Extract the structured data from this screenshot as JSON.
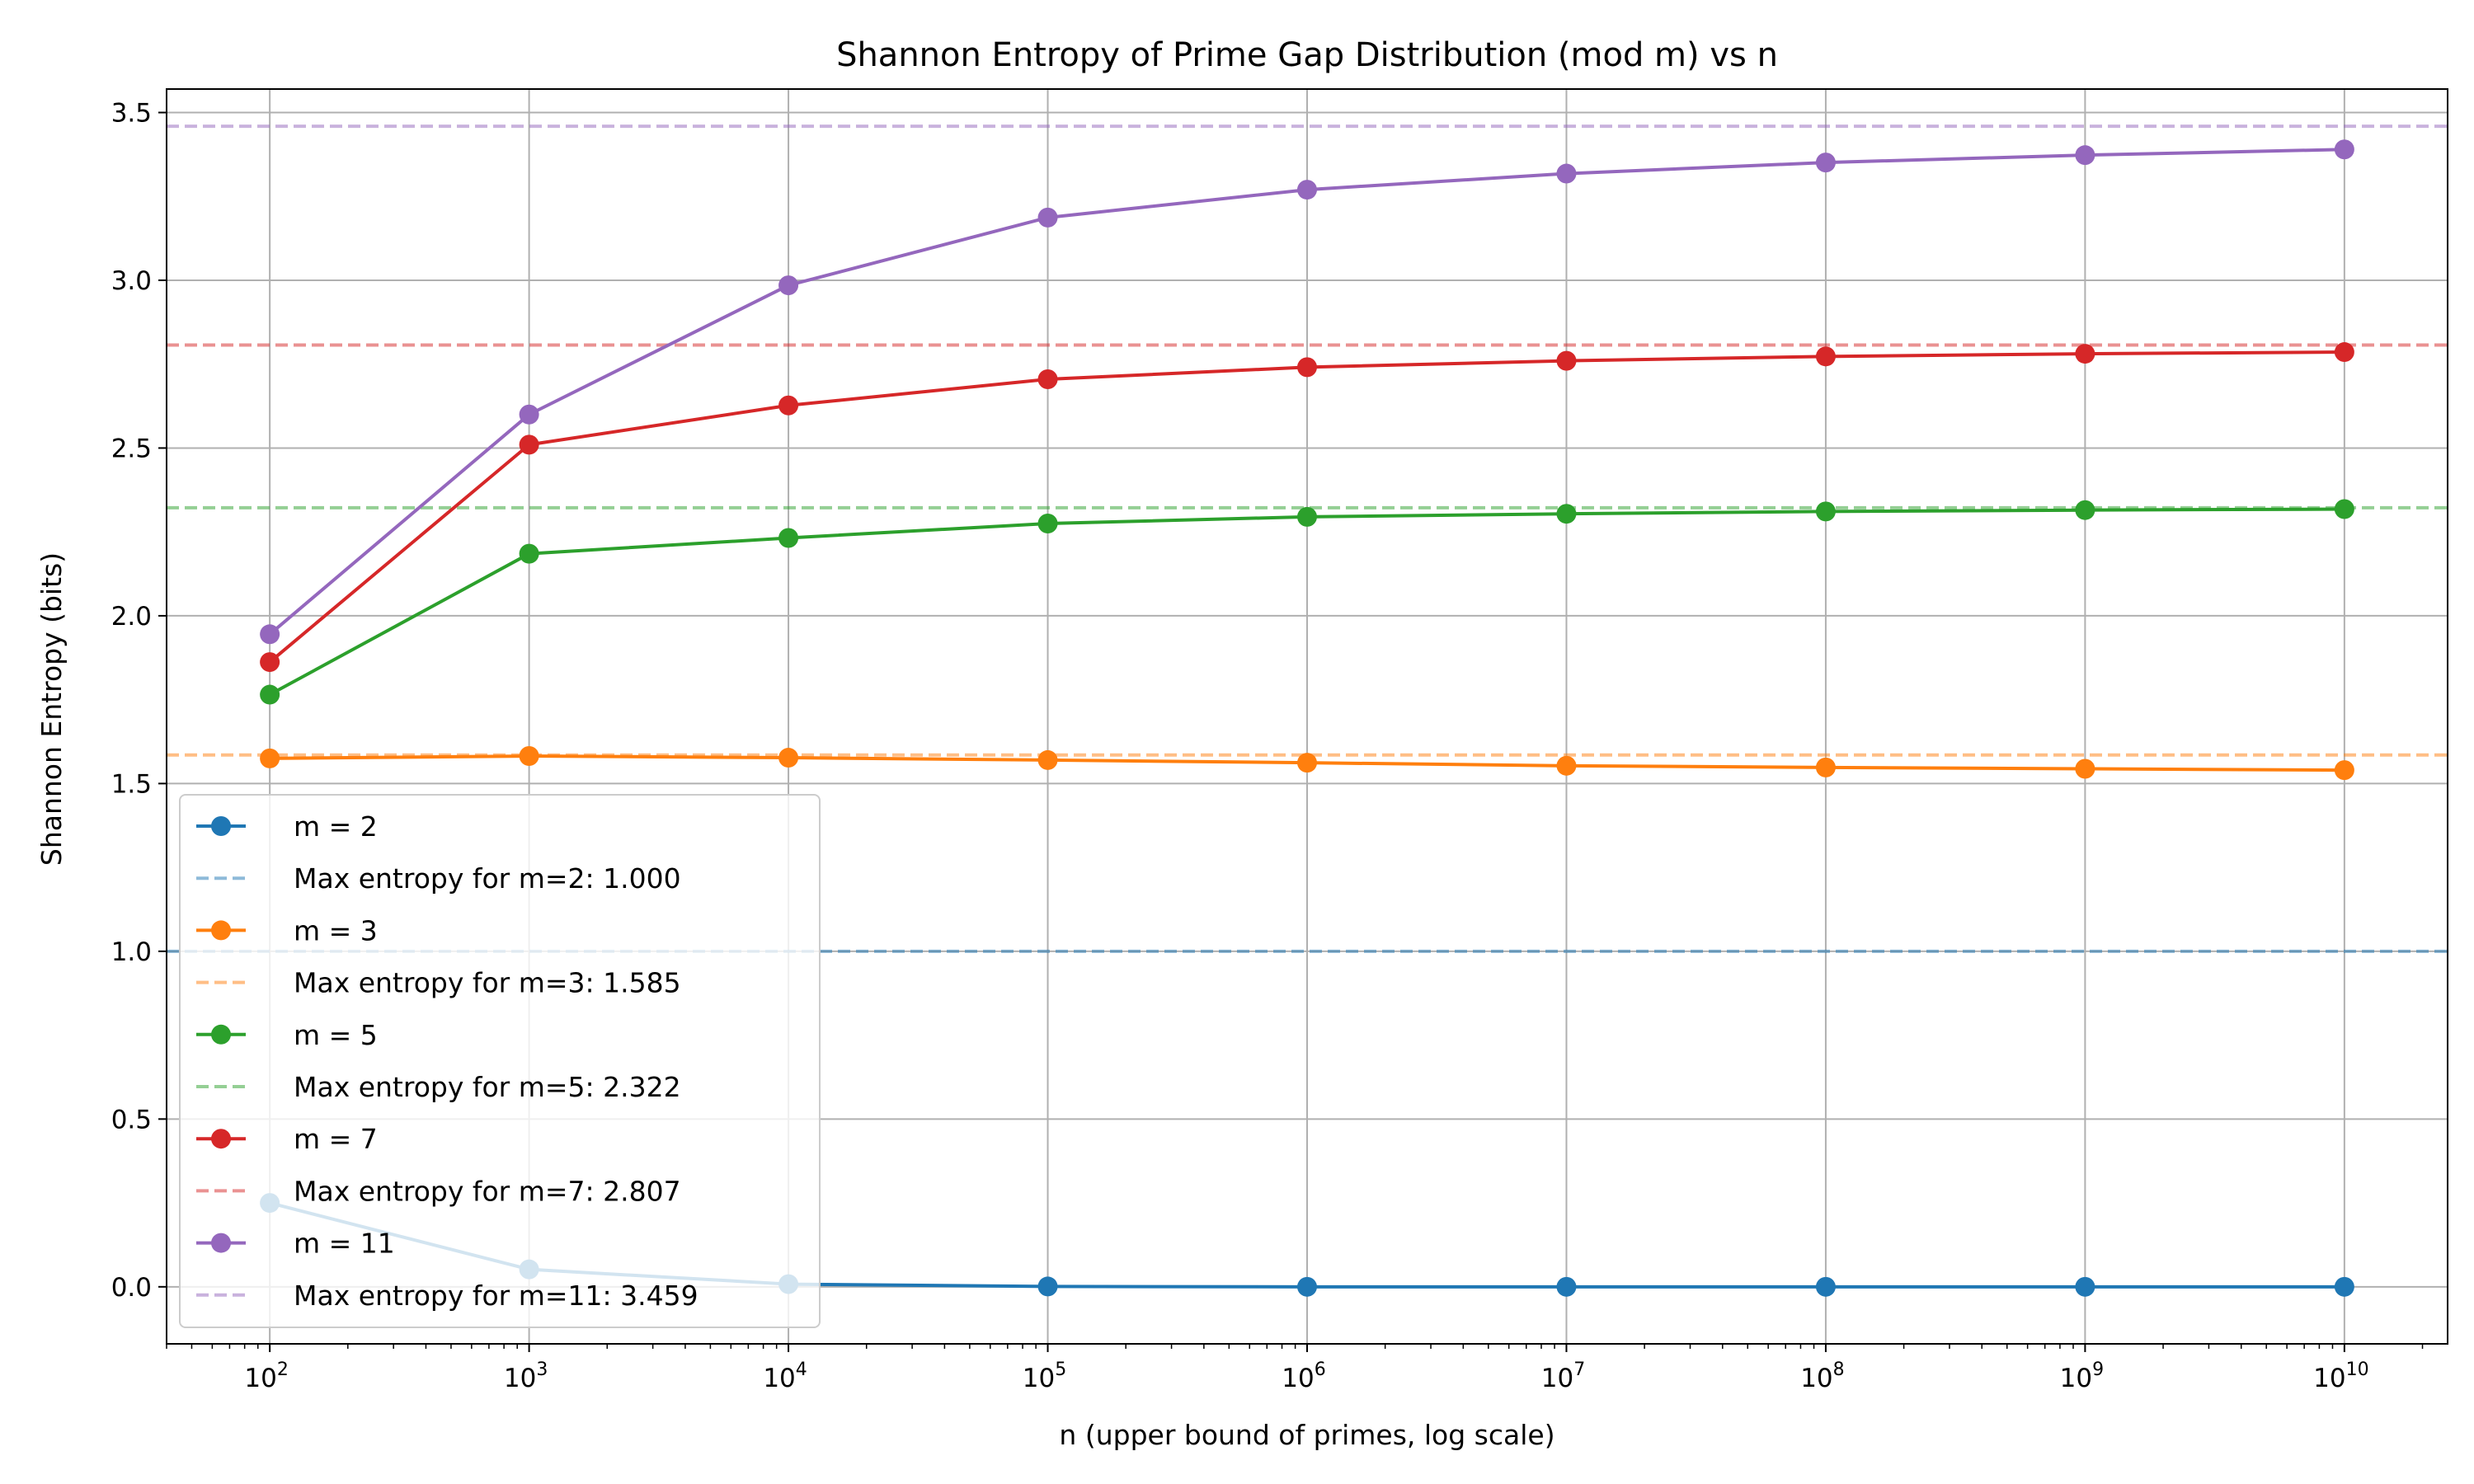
{
  "chart_data": {
    "type": "line",
    "title": "Shannon Entropy of Prime Gap Distribution (mod m) vs n",
    "xlabel": "n (upper bound of primes, log scale)",
    "ylabel": "Shannon Entropy (bits)",
    "x_scale": "log",
    "x_tick_base": "10",
    "x_tick_exponents": [
      "2",
      "3",
      "4",
      "5",
      "6",
      "7",
      "8",
      "9",
      "10"
    ],
    "y_ticks": [
      "0.0",
      "0.5",
      "1.0",
      "1.5",
      "2.0",
      "2.5",
      "3.0",
      "3.5"
    ],
    "xlim": [
      40,
      25000000000
    ],
    "ylim": [
      -0.17,
      3.57
    ],
    "grid": true,
    "legend_position": "lower-left",
    "x": [
      100,
      1000,
      10000,
      100000,
      1000000,
      10000000,
      100000000,
      1000000000,
      10000000000
    ],
    "series": [
      {
        "name": "m = 2",
        "color": "#1f77b4",
        "values": [
          0.25,
          0.052,
          0.008,
          0.001,
          0.0,
          0.0,
          0.0,
          0.0,
          0.0
        ]
      },
      {
        "name": "m = 3",
        "color": "#ff7f0e",
        "values": [
          1.575,
          1.582,
          1.577,
          1.57,
          1.562,
          1.553,
          1.548,
          1.544,
          1.54
        ]
      },
      {
        "name": "m = 5",
        "color": "#2ca02c",
        "values": [
          1.765,
          2.185,
          2.232,
          2.275,
          2.295,
          2.304,
          2.311,
          2.315,
          2.318
        ]
      },
      {
        "name": "m = 7",
        "color": "#d62728",
        "values": [
          1.862,
          2.51,
          2.627,
          2.705,
          2.741,
          2.76,
          2.773,
          2.781,
          2.786
        ]
      },
      {
        "name": "m = 11",
        "color": "#9467bd",
        "values": [
          1.945,
          2.6,
          2.985,
          3.187,
          3.27,
          3.318,
          3.351,
          3.373,
          3.39
        ]
      }
    ],
    "reference_lines": [
      {
        "name": "Max entropy for m=2: 1.000",
        "value": 1.0,
        "color": "#1f77b4"
      },
      {
        "name": "Max entropy for m=3: 1.585",
        "value": 1.585,
        "color": "#ff7f0e"
      },
      {
        "name": "Max entropy for m=5: 2.322",
        "value": 2.322,
        "color": "#2ca02c"
      },
      {
        "name": "Max entropy for m=7: 2.807",
        "value": 2.807,
        "color": "#d62728"
      },
      {
        "name": "Max entropy for m=11: 3.459",
        "value": 3.459,
        "color": "#9467bd"
      }
    ]
  }
}
